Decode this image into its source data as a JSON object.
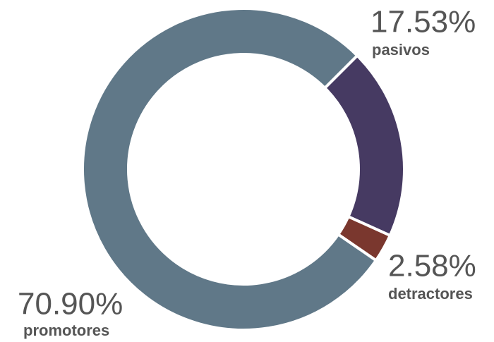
{
  "chart_data": {
    "type": "donut",
    "categories": [
      "pasivos",
      "detractores",
      "promotores"
    ],
    "values": [
      17.53,
      2.58,
      70.9
    ],
    "value_labels": [
      "17.53%",
      "2.58%",
      "70.90%"
    ],
    "colors": [
      "#463a62",
      "#7a372e",
      "#607888"
    ]
  }
}
